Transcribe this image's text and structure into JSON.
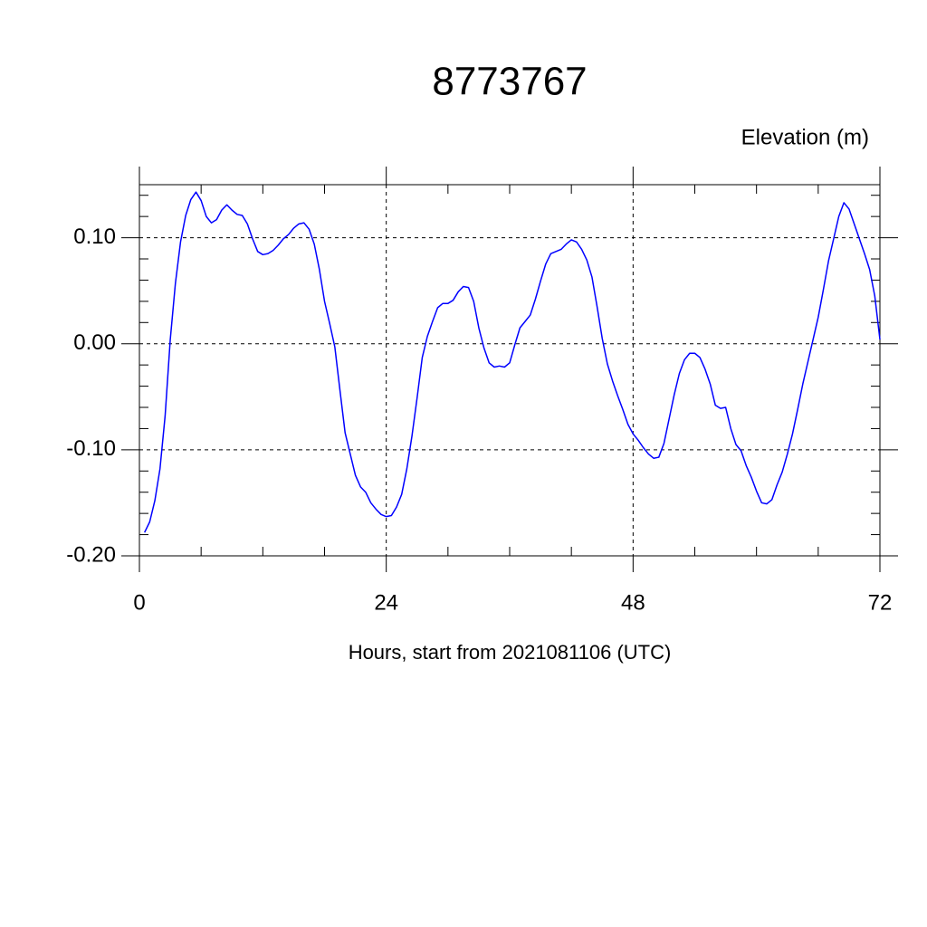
{
  "chart_data": {
    "type": "line",
    "title": "8773767",
    "subtitle": "Elevation (m)",
    "xlabel": "Hours, start from 2021081106 (UTC)",
    "x": [
      0.5,
      1,
      1.5,
      2,
      2.5,
      3,
      3.5,
      4,
      4.5,
      5,
      5.5,
      6,
      6.5,
      7,
      7.5,
      8,
      8.5,
      9,
      9.5,
      10,
      10.5,
      11,
      11.5,
      12,
      12.5,
      13,
      13.5,
      14,
      14.5,
      15,
      15.5,
      16,
      16.5,
      17,
      17.5,
      18,
      18.5,
      19,
      19.5,
      20,
      20.5,
      21,
      21.5,
      22,
      22.5,
      23,
      23.5,
      24,
      24.5,
      25,
      25.5,
      26,
      26.5,
      27,
      27.5,
      28,
      28.5,
      29,
      29.5,
      30,
      30.5,
      31,
      31.5,
      32,
      32.5,
      33,
      33.5,
      34,
      34.5,
      35,
      35.5,
      36,
      36.5,
      37,
      37.5,
      38,
      38.5,
      39,
      39.5,
      40,
      40.5,
      41,
      41.5,
      42,
      42.5,
      43,
      43.5,
      44,
      44.5,
      45,
      45.5,
      46,
      46.5,
      47,
      47.5,
      48,
      48.5,
      49,
      49.5,
      50,
      50.5,
      51,
      51.5,
      52,
      52.5,
      53,
      53.5,
      54,
      54.5,
      55,
      55.5,
      56,
      56.5,
      57,
      57.5,
      58,
      58.5,
      59,
      59.5,
      60,
      60.5,
      61,
      61.5,
      62,
      62.5,
      63,
      63.5,
      64,
      64.5,
      65,
      65.5,
      66,
      66.5,
      67,
      67.5,
      68,
      68.5,
      69,
      69.5,
      70,
      70.5,
      71,
      71.5,
      72
    ],
    "series": [
      {
        "color": "#0000ff",
        "values": [
          -0.178,
          -0.168,
          -0.148,
          -0.118,
          -0.068,
          0.004,
          0.057,
          0.096,
          0.121,
          0.136,
          0.143,
          0.135,
          0.12,
          0.114,
          0.117,
          0.126,
          0.131,
          0.126,
          0.122,
          0.121,
          0.113,
          0.099,
          0.087,
          0.084,
          0.085,
          0.088,
          0.093,
          0.099,
          0.103,
          0.109,
          0.113,
          0.114,
          0.108,
          0.094,
          0.07,
          0.04,
          0.019,
          -0.003,
          -0.044,
          -0.084,
          -0.104,
          -0.124,
          -0.135,
          -0.14,
          -0.15,
          -0.156,
          -0.161,
          -0.163,
          -0.162,
          -0.154,
          -0.142,
          -0.118,
          -0.087,
          -0.051,
          -0.013,
          0.007,
          0.021,
          0.034,
          0.038,
          0.038,
          0.041,
          0.049,
          0.054,
          0.053,
          0.04,
          0.015,
          -0.004,
          -0.018,
          -0.022,
          -0.021,
          -0.022,
          -0.018,
          -0.001,
          0.015,
          0.021,
          0.027,
          0.042,
          0.059,
          0.075,
          0.085,
          0.087,
          0.089,
          0.094,
          0.098,
          0.096,
          0.089,
          0.079,
          0.063,
          0.035,
          0.005,
          -0.019,
          -0.035,
          -0.049,
          -0.062,
          -0.076,
          -0.085,
          -0.091,
          -0.098,
          -0.104,
          -0.108,
          -0.107,
          -0.094,
          -0.071,
          -0.048,
          -0.028,
          -0.015,
          -0.009,
          -0.009,
          -0.013,
          -0.024,
          -0.038,
          -0.058,
          -0.061,
          -0.06,
          -0.08,
          -0.095,
          -0.101,
          -0.115,
          -0.126,
          -0.139,
          -0.15,
          -0.151,
          -0.147,
          -0.133,
          -0.121,
          -0.104,
          -0.085,
          -0.062,
          -0.038,
          -0.017,
          0.004,
          0.025,
          0.051,
          0.078,
          0.099,
          0.12,
          0.133,
          0.127,
          0.113,
          0.099,
          0.085,
          0.07,
          0.045,
          0.004
        ]
      }
    ],
    "xlim": [
      0,
      72
    ],
    "xticks": [
      0,
      24,
      48,
      72
    ],
    "ylim": [
      -0.2,
      0.15
    ],
    "yticks": [
      {
        "value": -0.2,
        "label": "-0.20"
      },
      {
        "value": -0.1,
        "label": "-0.10"
      },
      {
        "value": 0,
        "label": "0.00"
      },
      {
        "value": 0.1,
        "label": "0.10"
      }
    ],
    "grid": true
  }
}
